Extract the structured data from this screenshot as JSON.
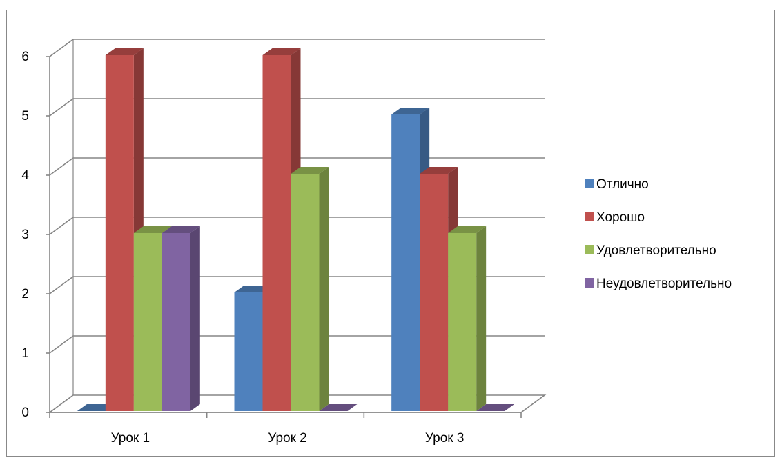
{
  "chart_data": {
    "type": "bar",
    "categories": [
      "Урок 1",
      "Урок 2",
      "Урок 3"
    ],
    "series": [
      {
        "name": "Отлично",
        "values": [
          0,
          2,
          5
        ],
        "color": "#4F81BD"
      },
      {
        "name": "Хорошо",
        "values": [
          6,
          6,
          4
        ],
        "color": "#C0504D"
      },
      {
        "name": "Удовлетворительно",
        "values": [
          3,
          4,
          3
        ],
        "color": "#9BBB59"
      },
      {
        "name": "Неудовлетворительно",
        "values": [
          3,
          0,
          0
        ],
        "color": "#8064A2"
      }
    ],
    "ylim": [
      0,
      6
    ],
    "yticks": [
      "0",
      "1",
      "2",
      "3",
      "4",
      "5",
      "6"
    ],
    "grid": true,
    "legend_position": "right",
    "style": "3d-clustered-column"
  }
}
